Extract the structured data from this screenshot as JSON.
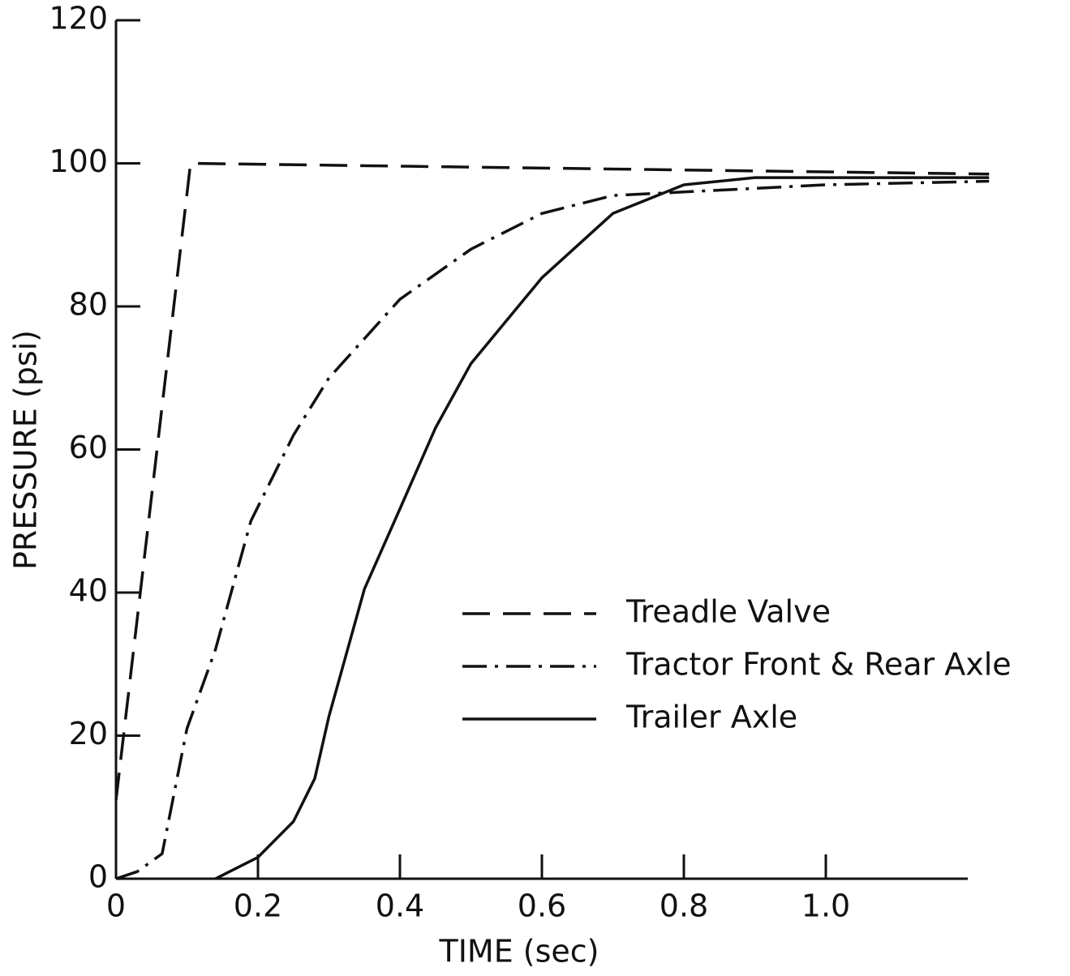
{
  "chart_data": {
    "type": "line",
    "xlabel": "TIME (sec)",
    "ylabel": "PRESSURE (psi)",
    "xlim": [
      0,
      1.2
    ],
    "xticks": [
      0,
      0.2,
      0.4,
      0.6,
      0.8,
      {
        "value": 1,
        "label": "1.0"
      }
    ],
    "ylim": [
      0,
      120
    ],
    "yticks": [
      0,
      20,
      40,
      60,
      80,
      100,
      120
    ],
    "grid": false,
    "series": [
      {
        "name": "Treadle Valve",
        "color": "#111111",
        "dash": "dashed",
        "x": [
          0,
          0.105,
          1.23
        ],
        "values": [
          11,
          100,
          98.5
        ]
      },
      {
        "name": "Tractor Front & Rear Axle",
        "color": "#111111",
        "dash": "dashdot",
        "x": [
          0,
          0.03,
          0.065,
          0.1,
          0.14,
          0.19,
          0.25,
          0.3,
          0.4,
          0.5,
          0.6,
          0.7,
          0.8,
          1.0,
          1.23
        ],
        "values": [
          0,
          1,
          3.5,
          21,
          32,
          50,
          62,
          70,
          81,
          88,
          93,
          95.5,
          96,
          97,
          97.5
        ]
      },
      {
        "name": "Trailer Axle",
        "color": "#111111",
        "dash": "solid",
        "x": [
          0.14,
          0.2,
          0.25,
          0.28,
          0.3,
          0.35,
          0.4,
          0.45,
          0.5,
          0.6,
          0.7,
          0.8,
          0.9,
          1.0,
          1.23
        ],
        "values": [
          0,
          3,
          8,
          14,
          22.7,
          40.5,
          51.7,
          63,
          72,
          84,
          93,
          97,
          98,
          98,
          98
        ]
      }
    ]
  }
}
